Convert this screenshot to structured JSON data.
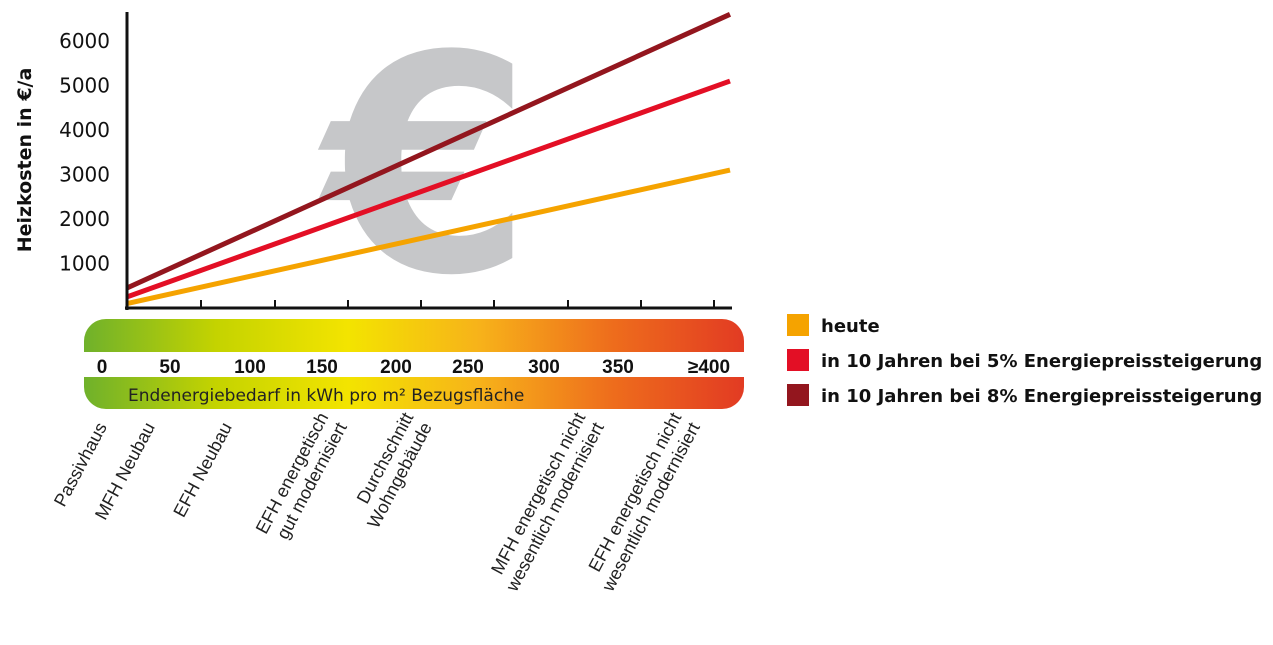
{
  "chart_data": {
    "type": "line",
    "title": "",
    "ylabel": "Heizkosten in €/a",
    "xlabel": "Endenergiebedarf in kWh pro m² Bezugsfläche",
    "watermark": "€",
    "ylim": [
      0,
      6700
    ],
    "yticks": [
      1000,
      2000,
      3000,
      4000,
      5000,
      6000
    ],
    "xlim": [
      0,
      415
    ],
    "xtick_values": [
      0,
      50,
      100,
      150,
      200,
      250,
      300,
      350,
      400
    ],
    "xtick_labels": [
      "0",
      "50",
      "100",
      "150",
      "200",
      "250",
      "300",
      "350",
      "≥400"
    ],
    "x": [
      0,
      415
    ],
    "series": [
      {
        "name": "heute",
        "color": "#f5a300",
        "values": [
          100,
          3100
        ]
      },
      {
        "name": "in 10 Jahren bei 5% Energiepreissteigerung",
        "color": "#e30f25",
        "values": [
          250,
          5100
        ]
      },
      {
        "name": "in 10 Jahren bei 8% Energiepreissteigerung",
        "color": "#93161e",
        "values": [
          450,
          6600
        ]
      }
    ],
    "efficiency_colors": [
      "#6fb12b",
      "#c4d300",
      "#f3e400",
      "#f7b21a",
      "#ee6d1c",
      "#e23b23"
    ],
    "categories": [
      {
        "lines": [
          "Passivhaus"
        ],
        "x": 15
      },
      {
        "lines": [
          "MFH Neubau"
        ],
        "x": 40
      },
      {
        "lines": [
          "EFH Neubau"
        ],
        "x": 80
      },
      {
        "lines": [
          "EFH energetisch",
          "gut modernisiert"
        ],
        "x": 122
      },
      {
        "lines": [
          "Durchschnitt",
          "Wohngebäude"
        ],
        "x": 210
      },
      {
        "lines": [
          "MFH energetisch nicht",
          "wesentlich modernisiert"
        ],
        "x": 320
      },
      {
        "lines": [
          "EFH energetisch nicht",
          "wesentlich modernisiert"
        ],
        "x": 385
      }
    ],
    "legend_position": "right"
  }
}
